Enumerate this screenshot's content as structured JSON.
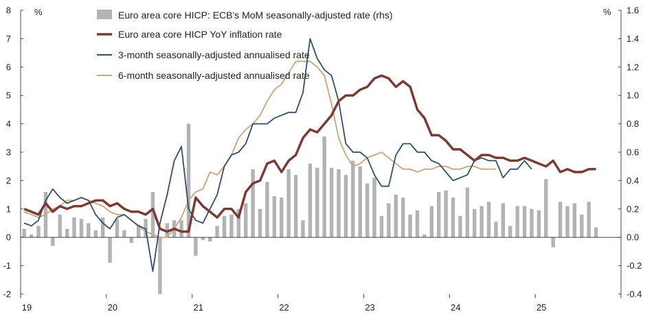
{
  "chart_data": {
    "type": "bar+line",
    "left_axis": {
      "unit": "%",
      "ylim": [
        -2,
        8
      ],
      "ticks": [
        -2,
        -1,
        0,
        1,
        2,
        3,
        4,
        5,
        6,
        7,
        8
      ]
    },
    "right_axis": {
      "unit": "%",
      "ylim": [
        -0.4,
        1.6
      ],
      "ticks": [
        "-0.4",
        "-0.2",
        "0.0",
        "0.2",
        "0.4",
        "0.6",
        "0.8",
        "1.0",
        "1.2",
        "1.4",
        "1.6"
      ]
    },
    "x_labels": [
      "19",
      "20",
      "21",
      "22",
      "23",
      "24",
      "25"
    ],
    "x_range_years": [
      2019,
      2026
    ],
    "legend": [
      {
        "name": "Euro area core HICP: ECB's MoM seasonally-adjusted rate (rhs)",
        "symbol": "bar",
        "color": "#b3b3b3"
      },
      {
        "name": "Euro area core HICP YoY inflation rate",
        "symbol": "line",
        "color": "#7b3a33"
      },
      {
        "name": "3-month seasonally-adjusted annualised rate",
        "symbol": "line",
        "color": "#2d4f6e"
      },
      {
        "name": "6-month seasonally-adjusted annualised rate",
        "symbol": "line",
        "color": "#c9ab80"
      }
    ],
    "series": [
      {
        "name": "Euro area core HICP: ECB's MoM seasonally-adjusted rate (rhs)",
        "type": "bar",
        "axis": "right",
        "start": "2019-01",
        "values": [
          0.06,
          0.02,
          0.08,
          0.32,
          -0.06,
          0.16,
          0.06,
          0.14,
          0.13,
          0.1,
          0.05,
          0.14,
          -0.18,
          0.13,
          0.05,
          -0.04,
          0.09,
          0.13,
          0.32,
          -0.4,
          0.1,
          0.12,
          0.12,
          0.8,
          -0.13,
          -0.02,
          -0.03,
          0.08,
          0.15,
          0.16,
          0.2,
          0.24,
          0.48,
          0.2,
          0.39,
          0.29,
          0.28,
          0.48,
          0.44,
          0.12,
          0.52,
          0.49,
          0.71,
          0.49,
          0.48,
          0.44,
          0.54,
          0.5,
          0.38,
          0.42,
          0.15,
          0.24,
          0.3,
          0.28,
          0.16,
          0.19,
          0.02,
          0.22,
          0.32,
          0.33,
          0.28,
          0.15,
          0.35,
          0.2,
          0.22,
          0.25,
          0.11,
          0.24,
          0.08,
          0.22,
          0.22,
          0.2,
          0.19,
          0.41,
          -0.07,
          0.25,
          0.22,
          0.24,
          0.16,
          0.25,
          0.07
        ]
      },
      {
        "name": "Euro area core HICP YoY inflation rate",
        "type": "line",
        "axis": "left",
        "start": "2019-01",
        "values": [
          1.0,
          0.9,
          0.8,
          1.2,
          0.9,
          1.1,
          1.0,
          1.1,
          1.1,
          1.2,
          1.3,
          1.3,
          1.1,
          1.2,
          1.0,
          0.9,
          0.9,
          0.8,
          1.0,
          0.3,
          0.2,
          0.3,
          0.2,
          0.2,
          1.4,
          1.1,
          0.9,
          0.7,
          1.0,
          1.0,
          0.7,
          1.6,
          1.9,
          2.0,
          2.6,
          2.7,
          2.3,
          2.7,
          2.9,
          3.5,
          3.8,
          3.7,
          4.0,
          4.3,
          4.8,
          5.0,
          5.0,
          5.2,
          5.3,
          5.6,
          5.7,
          5.6,
          5.3,
          5.5,
          5.3,
          4.5,
          4.2,
          3.6,
          3.6,
          3.4,
          3.1,
          3.1,
          2.9,
          2.7,
          2.9,
          2.9,
          2.8,
          2.8,
          2.7,
          2.7,
          2.8,
          2.7,
          2.6,
          2.5,
          2.7,
          2.3,
          2.4,
          2.3,
          2.3,
          2.4,
          2.4
        ]
      },
      {
        "name": "3-month seasonally-adjusted annualised rate",
        "type": "line",
        "axis": "left",
        "start": "2019-01",
        "values": [
          0.5,
          0.4,
          0.6,
          1.3,
          1.7,
          1.4,
          1.2,
          1.3,
          1.4,
          1.3,
          0.8,
          0.5,
          0.3,
          0.7,
          0.8,
          0.6,
          0.4,
          0.3,
          -1.2,
          0.5,
          1.5,
          2.7,
          3.2,
          1.0,
          0.6,
          0.5,
          1.0,
          1.5,
          2.5,
          2.9,
          3.0,
          3.3,
          4.0,
          4.0,
          4.0,
          4.2,
          4.3,
          4.4,
          4.4,
          5.1,
          7.0,
          6.3,
          5.9,
          5.7,
          4.8,
          3.3,
          3.0,
          3.0,
          2.8,
          2.2,
          1.8,
          1.8,
          2.9,
          3.3,
          3.3,
          3.0,
          3.0,
          2.7,
          2.6,
          2.3,
          2.0,
          2.1,
          2.2,
          2.7,
          2.8,
          2.7,
          2.7,
          2.1,
          2.4,
          2.4,
          2.7,
          2.4
        ]
      },
      {
        "name": "6-month seasonally-adjusted annualised rate",
        "type": "line",
        "axis": "left",
        "start": "2019-01",
        "values": [
          0.9,
          0.8,
          0.7,
          0.8,
          1.0,
          1.1,
          1.3,
          1.3,
          1.4,
          1.3,
          1.2,
          1.1,
          0.9,
          0.8,
          0.8,
          0.6,
          0.4,
          0.2,
          0.1,
          0.0,
          0.0,
          0.3,
          0.7,
          1.3,
          1.6,
          1.7,
          2.3,
          2.2,
          2.5,
          2.9,
          3.5,
          3.8,
          4.0,
          4.3,
          4.8,
          5.2,
          5.4,
          5.8,
          6.2,
          6.2,
          6.2,
          6.0,
          5.7,
          4.7,
          3.5,
          2.9,
          2.5,
          2.6,
          2.8,
          2.9,
          3.0,
          2.8,
          2.6,
          2.4,
          2.4,
          2.3,
          2.4,
          2.4,
          2.5,
          2.5,
          2.4,
          2.4,
          2.5,
          2.5,
          2.4,
          2.4,
          2.4
        ]
      }
    ]
  }
}
